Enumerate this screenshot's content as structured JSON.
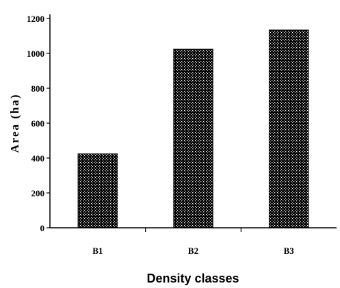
{
  "chart_data": {
    "type": "bar",
    "categories": [
      "B1",
      "B2",
      "B3"
    ],
    "values": [
      425,
      1025,
      1135
    ],
    "xlabel": "Density classes",
    "ylabel": "Area  (ha)",
    "ylim": [
      0,
      1200
    ],
    "yticks": [
      0,
      200,
      400,
      600,
      800,
      1000,
      1200
    ],
    "grid": false,
    "legend": "none",
    "bar_fill": "dotted-black",
    "colors": {
      "bar": "#000000",
      "axis": "#000000",
      "background": "#ffffff"
    }
  }
}
